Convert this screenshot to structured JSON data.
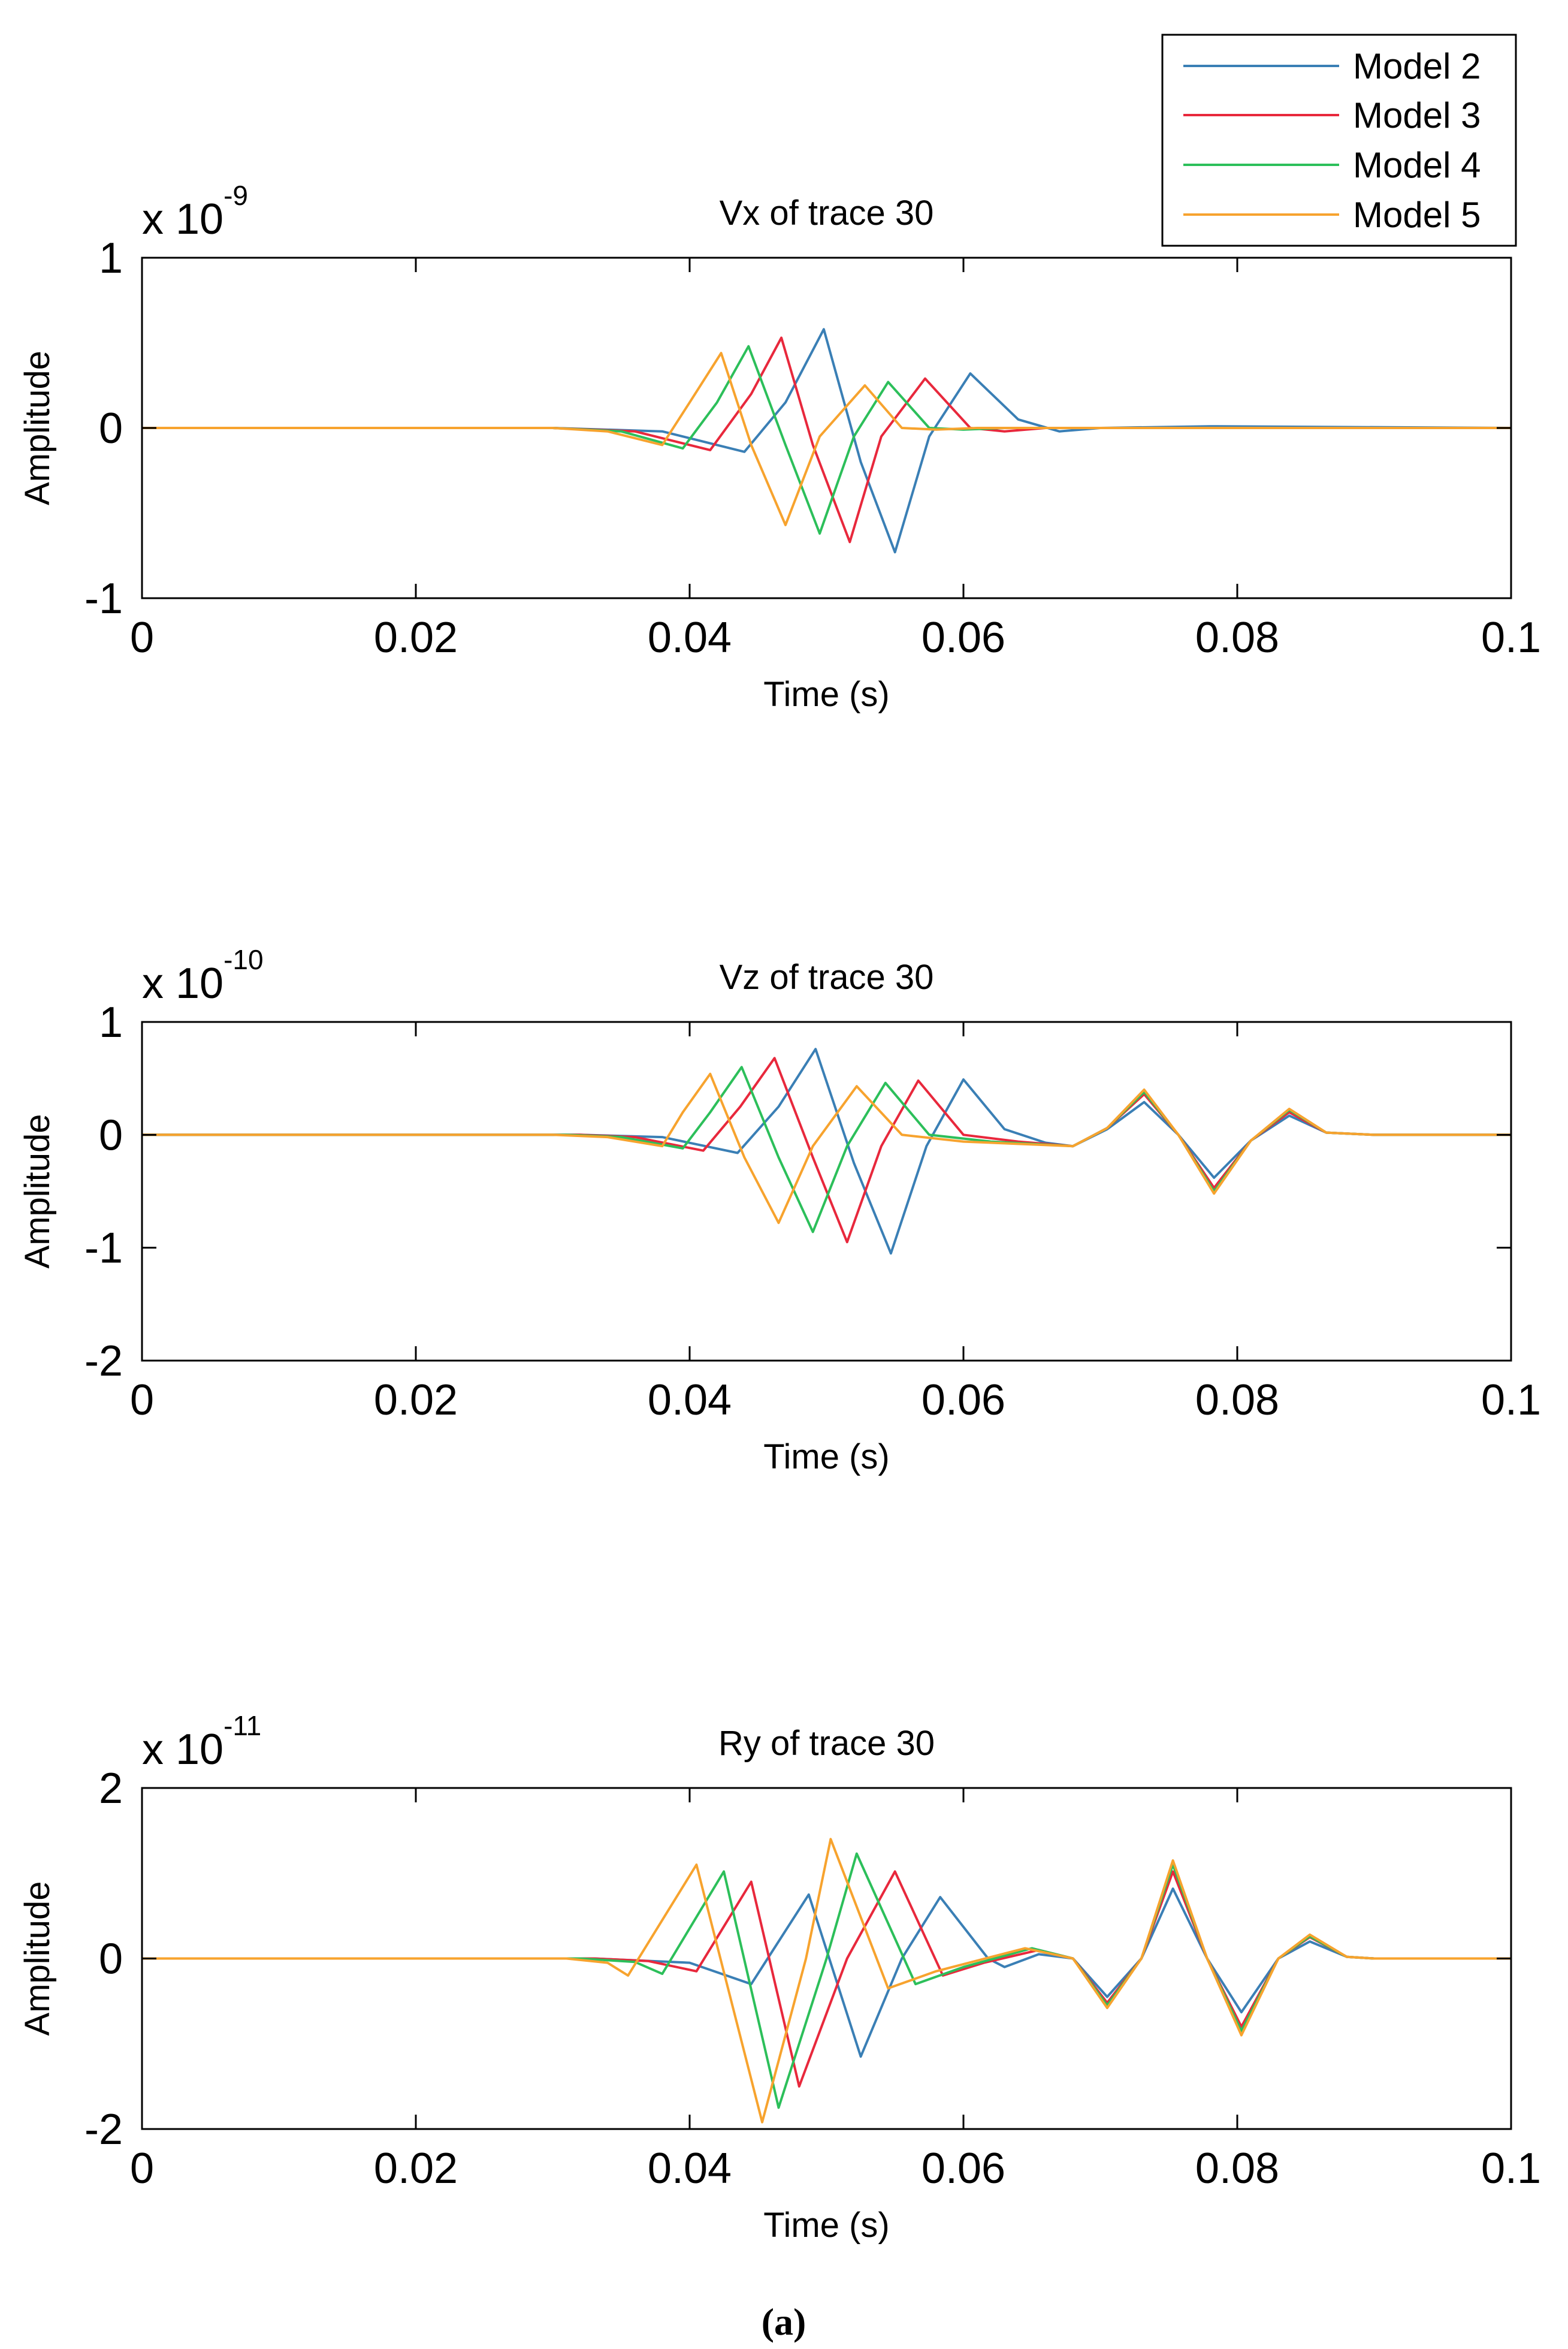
{
  "legend": {
    "entries": [
      {
        "label": "Model 2",
        "color": "#3a7fb5"
      },
      {
        "label": "Model 3",
        "color": "#e8283c"
      },
      {
        "label": "Model 4",
        "color": "#2cbf5a"
      },
      {
        "label": "Model 5",
        "color": "#f7a32e"
      }
    ]
  },
  "caption": "(a)",
  "chart_data": [
    {
      "type": "line",
      "title": "Vx of trace 30",
      "xlabel": "Time (s)",
      "ylabel": "Amplitude",
      "exponent_label": "x 10",
      "exponent": "-9",
      "xlim": [
        0,
        0.1
      ],
      "ylim": [
        -1,
        1
      ],
      "xticks": [
        0,
        0.02,
        0.04,
        0.06,
        0.08,
        0.1
      ],
      "xtick_labels": [
        "0",
        "0.02",
        "0.04",
        "0.06",
        "0.08",
        "0.1"
      ],
      "yticks": [
        -1,
        0,
        1
      ],
      "ytick_labels": [
        "-1",
        "0",
        "1"
      ],
      "series": [
        {
          "name": "Model 2",
          "color": "#3a7fb5",
          "points": [
            [
              0,
              0
            ],
            [
              0.03,
              0
            ],
            [
              0.038,
              -0.02
            ],
            [
              0.044,
              -0.14
            ],
            [
              0.047,
              0.15
            ],
            [
              0.0498,
              0.58
            ],
            [
              0.0525,
              -0.2
            ],
            [
              0.055,
              -0.73
            ],
            [
              0.0575,
              -0.05
            ],
            [
              0.0605,
              0.32
            ],
            [
              0.064,
              0.05
            ],
            [
              0.067,
              -0.02
            ],
            [
              0.07,
              0
            ],
            [
              0.078,
              0.01
            ],
            [
              0.1,
              0
            ]
          ]
        },
        {
          "name": "Model 3",
          "color": "#e8283c",
          "points": [
            [
              0,
              0
            ],
            [
              0.03,
              0
            ],
            [
              0.036,
              -0.02
            ],
            [
              0.0415,
              -0.13
            ],
            [
              0.0445,
              0.2
            ],
            [
              0.0467,
              0.53
            ],
            [
              0.049,
              -0.1
            ],
            [
              0.0517,
              -0.67
            ],
            [
              0.054,
              -0.05
            ],
            [
              0.0572,
              0.29
            ],
            [
              0.0605,
              0.0
            ],
            [
              0.063,
              -0.02
            ],
            [
              0.066,
              0
            ],
            [
              0.1,
              0
            ]
          ]
        },
        {
          "name": "Model 4",
          "color": "#2cbf5a",
          "points": [
            [
              0,
              0
            ],
            [
              0.03,
              0
            ],
            [
              0.035,
              -0.02
            ],
            [
              0.0395,
              -0.12
            ],
            [
              0.042,
              0.15
            ],
            [
              0.0443,
              0.48
            ],
            [
              0.047,
              -0.1
            ],
            [
              0.0495,
              -0.62
            ],
            [
              0.052,
              -0.05
            ],
            [
              0.0545,
              0.27
            ],
            [
              0.0575,
              0.0
            ],
            [
              0.06,
              -0.01
            ],
            [
              0.063,
              0
            ],
            [
              0.1,
              0
            ]
          ]
        },
        {
          "name": "Model 5",
          "color": "#f7a32e",
          "points": [
            [
              0,
              0
            ],
            [
              0.03,
              0
            ],
            [
              0.034,
              -0.02
            ],
            [
              0.038,
              -0.1
            ],
            [
              0.04,
              0.15
            ],
            [
              0.0423,
              0.44
            ],
            [
              0.0445,
              -0.1
            ],
            [
              0.047,
              -0.57
            ],
            [
              0.0495,
              -0.05
            ],
            [
              0.0528,
              0.25
            ],
            [
              0.0555,
              0.0
            ],
            [
              0.058,
              -0.01
            ],
            [
              0.061,
              0
            ],
            [
              0.1,
              0
            ]
          ]
        }
      ]
    },
    {
      "type": "line",
      "title": "Vz of trace 30",
      "xlabel": "Time (s)",
      "ylabel": "Amplitude",
      "exponent_label": "x 10",
      "exponent": "-10",
      "xlim": [
        0,
        0.1
      ],
      "ylim": [
        -2,
        1
      ],
      "xticks": [
        0,
        0.02,
        0.04,
        0.06,
        0.08,
        0.1
      ],
      "xtick_labels": [
        "0",
        "0.02",
        "0.04",
        "0.06",
        "0.08",
        "0.1"
      ],
      "yticks": [
        -2,
        -1,
        0,
        1
      ],
      "ytick_labels": [
        "-2",
        "-1",
        "0",
        "1"
      ],
      "series": [
        {
          "name": "Model 2",
          "color": "#3a7fb5",
          "points": [
            [
              0,
              0
            ],
            [
              0.032,
              0
            ],
            [
              0.038,
              -0.02
            ],
            [
              0.0435,
              -0.16
            ],
            [
              0.0465,
              0.25
            ],
            [
              0.0492,
              0.76
            ],
            [
              0.052,
              -0.25
            ],
            [
              0.0547,
              -1.05
            ],
            [
              0.0573,
              -0.1
            ],
            [
              0.06,
              0.49
            ],
            [
              0.063,
              0.05
            ],
            [
              0.066,
              -0.07
            ],
            [
              0.068,
              -0.1
            ],
            [
              0.0705,
              0.05
            ],
            [
              0.0732,
              0.29
            ],
            [
              0.0757,
              0.0
            ],
            [
              0.0783,
              -0.38
            ],
            [
              0.081,
              -0.05
            ],
            [
              0.0838,
              0.17
            ],
            [
              0.0865,
              0.02
            ],
            [
              0.09,
              0
            ],
            [
              0.1,
              0
            ]
          ]
        },
        {
          "name": "Model 3",
          "color": "#e8283c",
          "points": [
            [
              0,
              0
            ],
            [
              0.032,
              0
            ],
            [
              0.036,
              -0.02
            ],
            [
              0.041,
              -0.14
            ],
            [
              0.0437,
              0.25
            ],
            [
              0.0462,
              0.68
            ],
            [
              0.049,
              -0.2
            ],
            [
              0.0515,
              -0.95
            ],
            [
              0.054,
              -0.1
            ],
            [
              0.0567,
              0.48
            ],
            [
              0.06,
              0.0
            ],
            [
              0.064,
              -0.06
            ],
            [
              0.068,
              -0.1
            ],
            [
              0.0705,
              0.06
            ],
            [
              0.0732,
              0.36
            ],
            [
              0.0757,
              0.0
            ],
            [
              0.0783,
              -0.47
            ],
            [
              0.081,
              -0.05
            ],
            [
              0.0838,
              0.2
            ],
            [
              0.0865,
              0.02
            ],
            [
              0.09,
              0
            ],
            [
              0.1,
              0
            ]
          ]
        },
        {
          "name": "Model 4",
          "color": "#2cbf5a",
          "points": [
            [
              0,
              0
            ],
            [
              0.031,
              0
            ],
            [
              0.035,
              -0.02
            ],
            [
              0.0395,
              -0.12
            ],
            [
              0.0415,
              0.2
            ],
            [
              0.0438,
              0.6
            ],
            [
              0.0465,
              -0.2
            ],
            [
              0.049,
              -0.86
            ],
            [
              0.0515,
              -0.1
            ],
            [
              0.0543,
              0.46
            ],
            [
              0.0575,
              0.0
            ],
            [
              0.062,
              -0.06
            ],
            [
              0.068,
              -0.1
            ],
            [
              0.0705,
              0.06
            ],
            [
              0.0732,
              0.38
            ],
            [
              0.0757,
              0.0
            ],
            [
              0.0783,
              -0.5
            ],
            [
              0.081,
              -0.05
            ],
            [
              0.0838,
              0.22
            ],
            [
              0.0865,
              0.02
            ],
            [
              0.09,
              0
            ],
            [
              0.1,
              0
            ]
          ]
        },
        {
          "name": "Model 5",
          "color": "#f7a32e",
          "points": [
            [
              0,
              0
            ],
            [
              0.03,
              0
            ],
            [
              0.034,
              -0.02
            ],
            [
              0.038,
              -0.1
            ],
            [
              0.0395,
              0.2
            ],
            [
              0.0415,
              0.54
            ],
            [
              0.044,
              -0.2
            ],
            [
              0.0465,
              -0.78
            ],
            [
              0.049,
              -0.1
            ],
            [
              0.0522,
              0.43
            ],
            [
              0.0555,
              0.0
            ],
            [
              0.06,
              -0.06
            ],
            [
              0.068,
              -0.1
            ],
            [
              0.0705,
              0.06
            ],
            [
              0.0732,
              0.4
            ],
            [
              0.0757,
              0.0
            ],
            [
              0.0783,
              -0.52
            ],
            [
              0.081,
              -0.05
            ],
            [
              0.0838,
              0.23
            ],
            [
              0.0865,
              0.02
            ],
            [
              0.09,
              0
            ],
            [
              0.1,
              0
            ]
          ]
        }
      ]
    },
    {
      "type": "line",
      "title": "Ry of trace 30",
      "xlabel": "Time (s)",
      "ylabel": "Amplitude",
      "exponent_label": "x 10",
      "exponent": "-11",
      "xlim": [
        0,
        0.1
      ],
      "ylim": [
        -2,
        2
      ],
      "xticks": [
        0,
        0.02,
        0.04,
        0.06,
        0.08,
        0.1
      ],
      "xtick_labels": [
        "0",
        "0.02",
        "0.04",
        "0.06",
        "0.08",
        "0.1"
      ],
      "yticks": [
        -2,
        0,
        2
      ],
      "ytick_labels": [
        "-2",
        "0",
        "2"
      ],
      "series": [
        {
          "name": "Model 2",
          "color": "#3a7fb5",
          "points": [
            [
              0,
              0
            ],
            [
              0.033,
              0
            ],
            [
              0.04,
              -0.05
            ],
            [
              0.0445,
              -0.3
            ],
            [
              0.0487,
              0.75
            ],
            [
              0.0525,
              -1.15
            ],
            [
              0.0555,
              0.0
            ],
            [
              0.0583,
              0.72
            ],
            [
              0.0618,
              0.0
            ],
            [
              0.063,
              -0.1
            ],
            [
              0.0655,
              0.05
            ],
            [
              0.068,
              0.0
            ],
            [
              0.0705,
              -0.45
            ],
            [
              0.073,
              0.0
            ],
            [
              0.0753,
              0.82
            ],
            [
              0.0778,
              0.0
            ],
            [
              0.0803,
              -0.63
            ],
            [
              0.083,
              0.0
            ],
            [
              0.0853,
              0.2
            ],
            [
              0.088,
              0.02
            ],
            [
              0.09,
              0
            ],
            [
              0.1,
              0
            ]
          ]
        },
        {
          "name": "Model 3",
          "color": "#e8283c",
          "points": [
            [
              0,
              0
            ],
            [
              0.033,
              0
            ],
            [
              0.037,
              -0.03
            ],
            [
              0.0405,
              -0.15
            ],
            [
              0.0445,
              0.9
            ],
            [
              0.048,
              -1.5
            ],
            [
              0.0515,
              0.0
            ],
            [
              0.055,
              1.02
            ],
            [
              0.0585,
              -0.2
            ],
            [
              0.0615,
              -0.05
            ],
            [
              0.0655,
              0.1
            ],
            [
              0.068,
              0.0
            ],
            [
              0.0705,
              -0.52
            ],
            [
              0.073,
              0.0
            ],
            [
              0.0753,
              1.02
            ],
            [
              0.0778,
              0.0
            ],
            [
              0.0803,
              -0.8
            ],
            [
              0.083,
              0.0
            ],
            [
              0.0853,
              0.25
            ],
            [
              0.088,
              0.02
            ],
            [
              0.09,
              0
            ],
            [
              0.1,
              0
            ]
          ]
        },
        {
          "name": "Model 4",
          "color": "#2cbf5a",
          "points": [
            [
              0,
              0
            ],
            [
              0.032,
              0
            ],
            [
              0.036,
              -0.04
            ],
            [
              0.038,
              -0.18
            ],
            [
              0.0425,
              1.02
            ],
            [
              0.0465,
              -1.75
            ],
            [
              0.05,
              0.0
            ],
            [
              0.0522,
              1.23
            ],
            [
              0.0565,
              -0.3
            ],
            [
              0.06,
              -0.1
            ],
            [
              0.065,
              0.12
            ],
            [
              0.068,
              0.0
            ],
            [
              0.0705,
              -0.55
            ],
            [
              0.073,
              0.0
            ],
            [
              0.0753,
              1.1
            ],
            [
              0.0778,
              0.0
            ],
            [
              0.0803,
              -0.85
            ],
            [
              0.083,
              0.0
            ],
            [
              0.0853,
              0.26
            ],
            [
              0.088,
              0.02
            ],
            [
              0.09,
              0
            ],
            [
              0.1,
              0
            ]
          ]
        },
        {
          "name": "Model 5",
          "color": "#f7a32e",
          "points": [
            [
              0,
              0
            ],
            [
              0.031,
              0
            ],
            [
              0.034,
              -0.05
            ],
            [
              0.0355,
              -0.2
            ],
            [
              0.0405,
              1.1
            ],
            [
              0.0453,
              -1.92
            ],
            [
              0.0485,
              0.0
            ],
            [
              0.0503,
              1.4
            ],
            [
              0.0545,
              -0.35
            ],
            [
              0.058,
              -0.15
            ],
            [
              0.0645,
              0.12
            ],
            [
              0.068,
              0.0
            ],
            [
              0.0705,
              -0.58
            ],
            [
              0.073,
              0.0
            ],
            [
              0.0753,
              1.15
            ],
            [
              0.0778,
              0.0
            ],
            [
              0.0803,
              -0.9
            ],
            [
              0.083,
              0.0
            ],
            [
              0.0853,
              0.28
            ],
            [
              0.088,
              0.02
            ],
            [
              0.09,
              0
            ],
            [
              0.1,
              0
            ]
          ]
        }
      ]
    }
  ]
}
